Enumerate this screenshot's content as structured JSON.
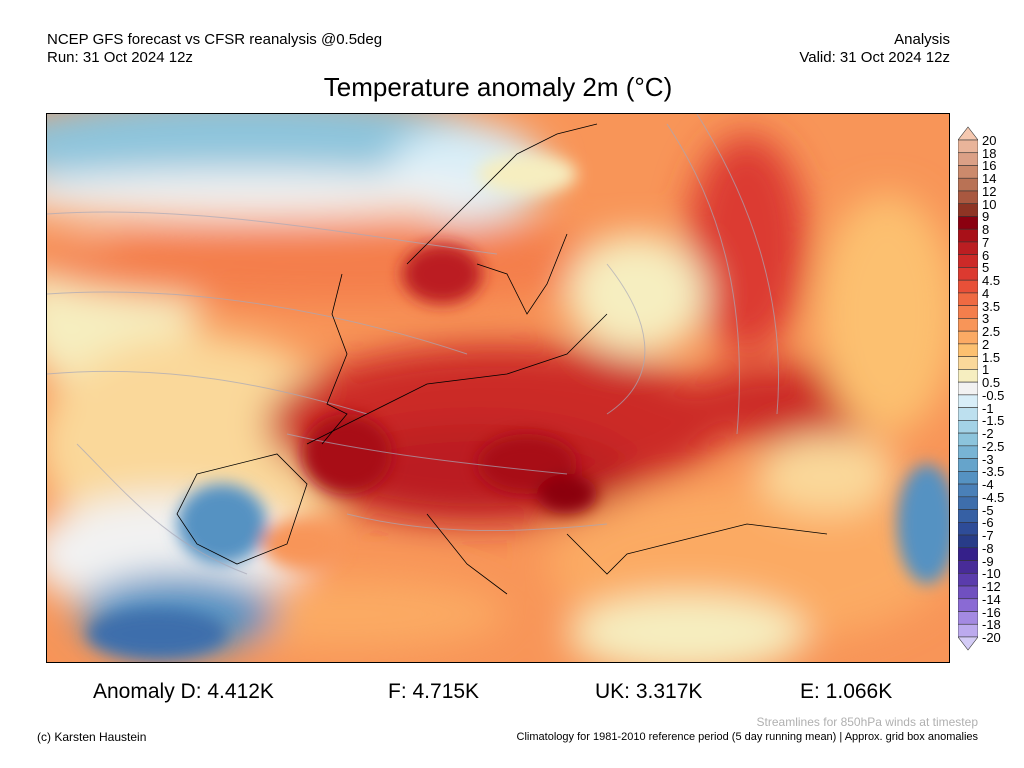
{
  "header": {
    "left_line1": "NCEP GFS forecast vs CFSR reanalysis @0.5deg",
    "left_line2": "Run: 31 Oct 2024 12z",
    "right_line1": "Analysis",
    "right_line2": "Valid: 31 Oct 2024 12z",
    "title": "Temperature anomaly 2m (°C)"
  },
  "colorbar": {
    "labels": [
      "20",
      "18",
      "16",
      "14",
      "12",
      "10",
      "9",
      "8",
      "7",
      "6",
      "5",
      "4.5",
      "4",
      "3.5",
      "3",
      "2.5",
      "2",
      "1.5",
      "1",
      "0.5",
      "-0.5",
      "-1",
      "-1.5",
      "-2",
      "-2.5",
      "-3",
      "-3.5",
      "-4",
      "-4.5",
      "-5",
      "-6",
      "-7",
      "-8",
      "-9",
      "-10",
      "-12",
      "-14",
      "-16",
      "-18",
      "-20"
    ],
    "colors": [
      "#f5c8b0",
      "#e9b49a",
      "#dba086",
      "#cc8a6c",
      "#b97255",
      "#a95840",
      "#8e3424",
      "#8b0010",
      "#a81018",
      "#bb1e22",
      "#cc2a28",
      "#dc3a30",
      "#e85038",
      "#ef6a42",
      "#f47e4c",
      "#f89558",
      "#fbaa64",
      "#fcc070",
      "#fad89a",
      "#f6eec0",
      "#f2f2f2",
      "#d8eef8",
      "#bde0ef",
      "#a3d2e6",
      "#8cc4dc",
      "#78b4d4",
      "#66a4cb",
      "#5592c2",
      "#4a80b8",
      "#3e6eac",
      "#3660a4",
      "#2e4c98",
      "#283c88",
      "#35208a",
      "#482c98",
      "#5a3cac",
      "#7050c0",
      "#8a6ad4",
      "#a48ae2",
      "#bcaaee",
      "#d4ccf6"
    ]
  },
  "stats": {
    "d": "Anomaly D: 4.412K",
    "f": "F: 4.715K",
    "uk": "UK: 3.317K",
    "e": "E: 1.066K"
  },
  "footer": {
    "credit": "(c) Karsten Haustein",
    "streamlines": "Streamlines for 850hPa winds at timestep",
    "climatology": "Climatology for 1981-2010 reference period (5 day running mean) | Approx. grid box anomalies"
  }
}
